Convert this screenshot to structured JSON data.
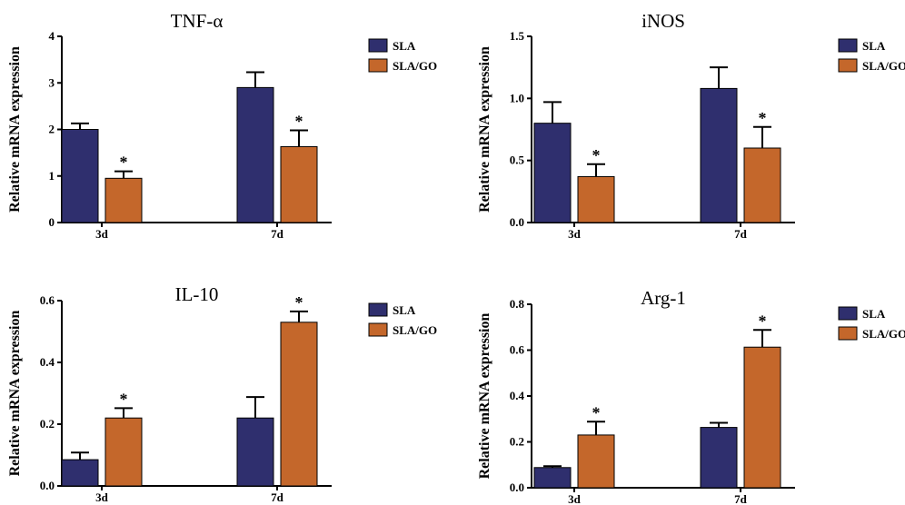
{
  "chart_data": [
    {
      "type": "bar",
      "title": "TNF-α",
      "ylabel": "Relative mRNA expression",
      "xlabel": "",
      "categories": [
        "3d",
        "7d"
      ],
      "ylim": [
        0,
        4
      ],
      "yticks": [
        0,
        1,
        2,
        3,
        4
      ],
      "ytick_labels": [
        "0",
        "1",
        "2",
        "3",
        "4"
      ],
      "series": [
        {
          "name": "SLA",
          "color": "#2f2f6e",
          "values": [
            2.0,
            2.9
          ],
          "errors": [
            0.13,
            0.33
          ]
        },
        {
          "name": "SLA/GO",
          "color": "#c4672b",
          "values": [
            0.95,
            1.63
          ],
          "errors": [
            0.15,
            0.35
          ]
        }
      ],
      "annotations": [
        {
          "series": "SLA/GO",
          "category": "3d",
          "text": "*"
        },
        {
          "series": "SLA/GO",
          "category": "7d",
          "text": "*"
        }
      ],
      "legend": "top-right",
      "grid": false
    },
    {
      "type": "bar",
      "title": "iNOS",
      "ylabel": "Relative mRNA expression",
      "xlabel": "",
      "categories": [
        "3d",
        "7d"
      ],
      "ylim": [
        0,
        1.5
      ],
      "yticks": [
        0,
        0.5,
        1.0,
        1.5
      ],
      "ytick_labels": [
        "0.0",
        "0.5",
        "1.0",
        "1.5"
      ],
      "series": [
        {
          "name": "SLA",
          "color": "#2f2f6e",
          "values": [
            0.8,
            1.08
          ],
          "errors": [
            0.17,
            0.17
          ]
        },
        {
          "name": "SLA/GO",
          "color": "#c4672b",
          "values": [
            0.37,
            0.6
          ],
          "errors": [
            0.1,
            0.17
          ]
        }
      ],
      "annotations": [
        {
          "series": "SLA/GO",
          "category": "3d",
          "text": "*"
        },
        {
          "series": "SLA/GO",
          "category": "7d",
          "text": "*"
        }
      ],
      "legend": "top-right",
      "grid": false
    },
    {
      "type": "bar",
      "title": "IL-10",
      "ylabel": "Relative mRNA expression",
      "xlabel": "",
      "categories": [
        "3d",
        "7d"
      ],
      "ylim": [
        0,
        0.6
      ],
      "yticks": [
        0,
        0.2,
        0.4,
        0.6
      ],
      "ytick_labels": [
        "0.0",
        "0.2",
        "0.4",
        "0.6"
      ],
      "series": [
        {
          "name": "SLA",
          "color": "#2f2f6e",
          "values": [
            0.085,
            0.22
          ],
          "errors": [
            0.023,
            0.068
          ]
        },
        {
          "name": "SLA/GO",
          "color": "#c4672b",
          "values": [
            0.22,
            0.53
          ],
          "errors": [
            0.032,
            0.035
          ]
        }
      ],
      "annotations": [
        {
          "series": "SLA/GO",
          "category": "3d",
          "text": "*"
        },
        {
          "series": "SLA/GO",
          "category": "7d",
          "text": "*"
        }
      ],
      "legend": "top-right",
      "grid": false
    },
    {
      "type": "bar",
      "title": "Arg-1",
      "ylabel": "Relative mRNA expression",
      "xlabel": "",
      "categories": [
        "3d",
        "7d"
      ],
      "ylim": [
        0,
        0.8
      ],
      "yticks": [
        0,
        0.2,
        0.4,
        0.6,
        0.8
      ],
      "ytick_labels": [
        "0.0",
        "0.2",
        "0.4",
        "0.6",
        "0.8"
      ],
      "series": [
        {
          "name": "SLA",
          "color": "#2f2f6e",
          "values": [
            0.088,
            0.263
          ],
          "errors": [
            0.006,
            0.02
          ]
        },
        {
          "name": "SLA/GO",
          "color": "#c4672b",
          "values": [
            0.23,
            0.613
          ],
          "errors": [
            0.058,
            0.075
          ]
        }
      ],
      "annotations": [
        {
          "series": "SLA/GO",
          "category": "3d",
          "text": "*"
        },
        {
          "series": "SLA/GO",
          "category": "7d",
          "text": "*"
        }
      ],
      "legend": "top-right",
      "grid": false
    }
  ]
}
